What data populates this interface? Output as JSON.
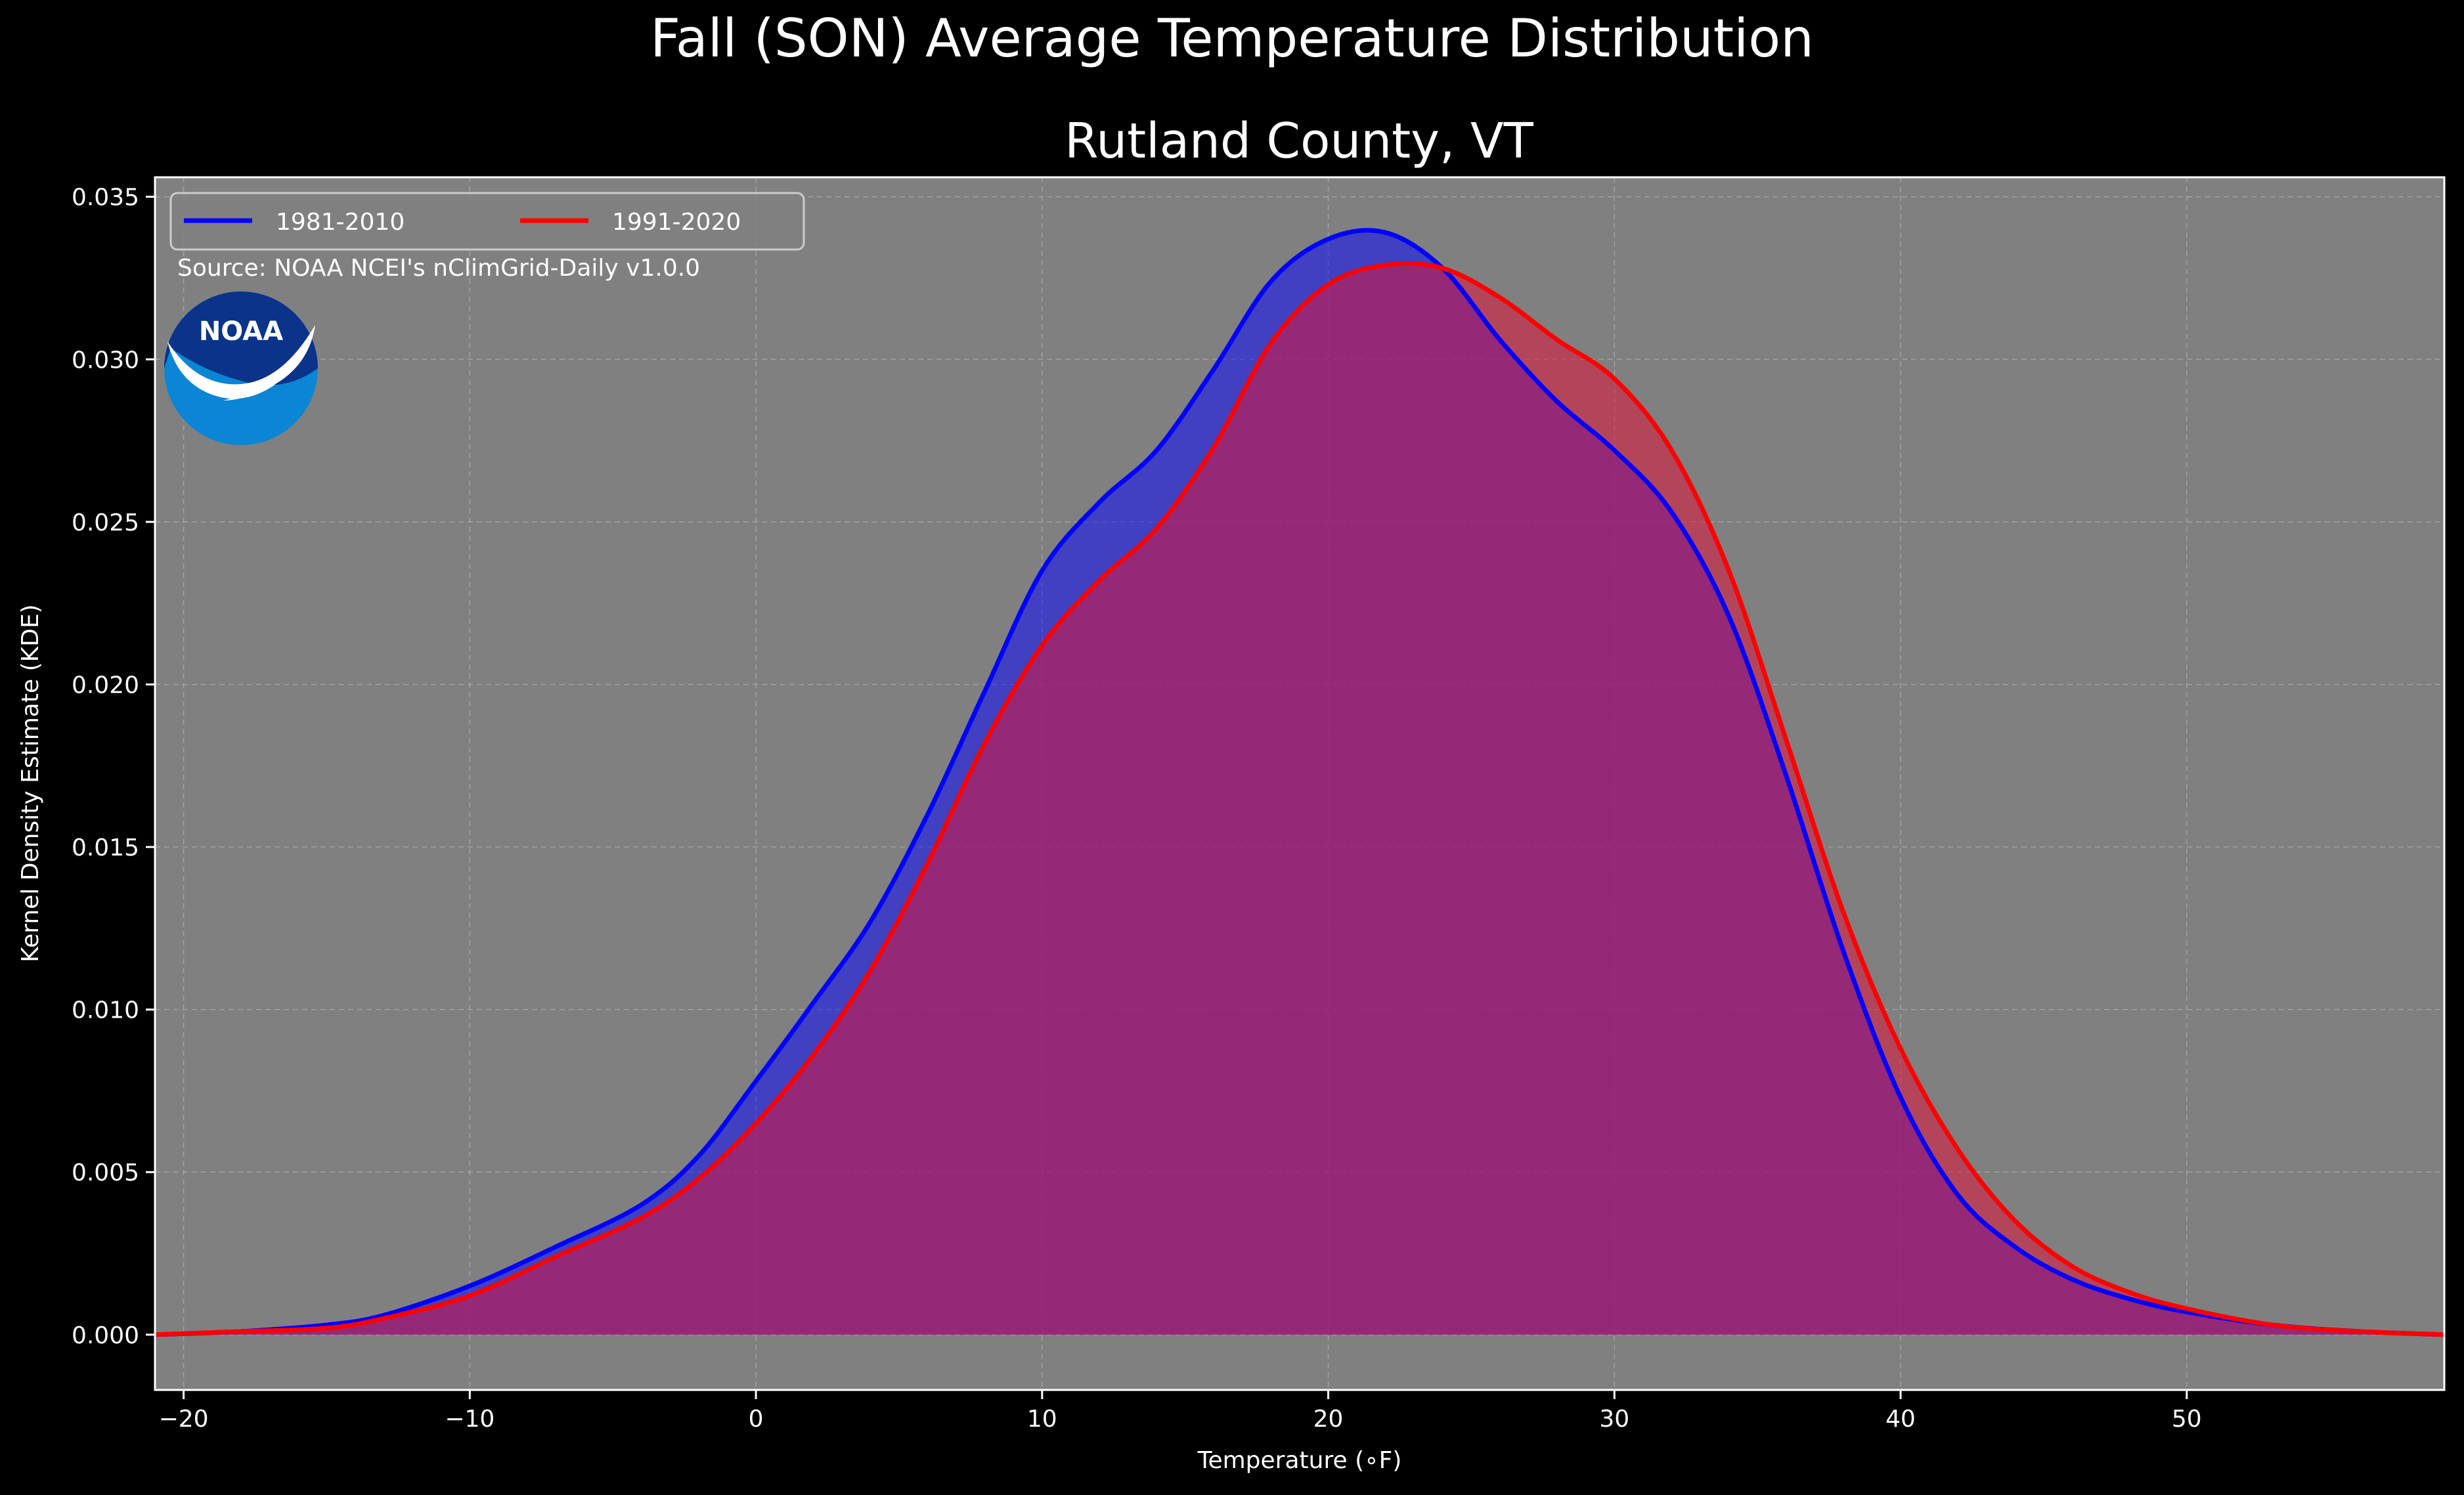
{
  "chart_data": {
    "type": "area",
    "title": "Fall (SON) Average Temperature Distribution",
    "subtitle": "Rutland County, VT",
    "xlabel": "Temperature (∘F)",
    "ylabel": "Kernel Density Estimate (KDE)",
    "source_note": "Source: NOAA NCEI's nClimGrid-Daily v1.0.0",
    "logo_text": "NOAA",
    "xlim": [
      -21,
      59
    ],
    "ylim": [
      -0.0017,
      0.0356
    ],
    "xticks": [
      -20,
      -10,
      0,
      10,
      20,
      30,
      40,
      50
    ],
    "yticks": [
      0.0,
      0.005,
      0.01,
      0.015,
      0.02,
      0.025,
      0.03,
      0.035
    ],
    "ytick_labels": [
      "0.000",
      "0.005",
      "0.010",
      "0.015",
      "0.020",
      "0.025",
      "0.030",
      "0.035"
    ],
    "grid": true,
    "legend_position": "top-left",
    "colors": {
      "figure_bg": "#000000",
      "axes_bg": "#808080",
      "text": "#ffffff",
      "grid": "#b0b0b0",
      "logo_dark": "#0a3389",
      "logo_light": "#0a86d4"
    },
    "series": [
      {
        "name": "1981-2010",
        "color": "#0000ff",
        "fill_color": "#0000ff",
        "x": [
          -21,
          -18,
          -15,
          -13,
          -10,
          -7,
          -4,
          -2,
          0,
          2,
          4,
          6,
          8,
          10,
          12,
          14,
          16,
          18,
          20,
          22,
          24,
          26,
          28,
          30,
          32,
          34,
          36,
          38,
          40,
          42,
          44,
          46,
          48,
          50,
          53,
          56,
          59
        ],
        "y": [
          0.0,
          0.0001,
          0.0003,
          0.0006,
          0.0015,
          0.0027,
          0.004,
          0.0055,
          0.0078,
          0.0102,
          0.0127,
          0.016,
          0.0198,
          0.0235,
          0.0256,
          0.0272,
          0.0297,
          0.0324,
          0.0337,
          0.0339,
          0.0328,
          0.0306,
          0.0287,
          0.0272,
          0.0253,
          0.0221,
          0.0172,
          0.0118,
          0.0073,
          0.0043,
          0.0027,
          0.0017,
          0.0011,
          0.0007,
          0.0003,
          0.0001,
          0.0
        ]
      },
      {
        "name": "1991-2020",
        "color": "#ff0000",
        "fill_color": "#dc143c",
        "x": [
          -21,
          -18,
          -15,
          -13,
          -10,
          -7,
          -4,
          -2,
          0,
          2,
          4,
          6,
          8,
          10,
          12,
          14,
          16,
          18,
          20,
          22,
          24,
          26,
          28,
          30,
          32,
          34,
          36,
          38,
          40,
          42,
          44,
          46,
          48,
          50,
          53,
          56,
          59
        ],
        "y": [
          0.0,
          0.0001,
          0.0002,
          0.0005,
          0.0012,
          0.0024,
          0.0036,
          0.0048,
          0.0065,
          0.0086,
          0.0112,
          0.0145,
          0.0182,
          0.0212,
          0.0232,
          0.0248,
          0.0273,
          0.0305,
          0.0323,
          0.0329,
          0.0328,
          0.0319,
          0.0306,
          0.0294,
          0.0272,
          0.0235,
          0.0183,
          0.013,
          0.0088,
          0.0057,
          0.0035,
          0.0021,
          0.0013,
          0.0008,
          0.0003,
          0.0001,
          0.0
        ]
      }
    ]
  }
}
